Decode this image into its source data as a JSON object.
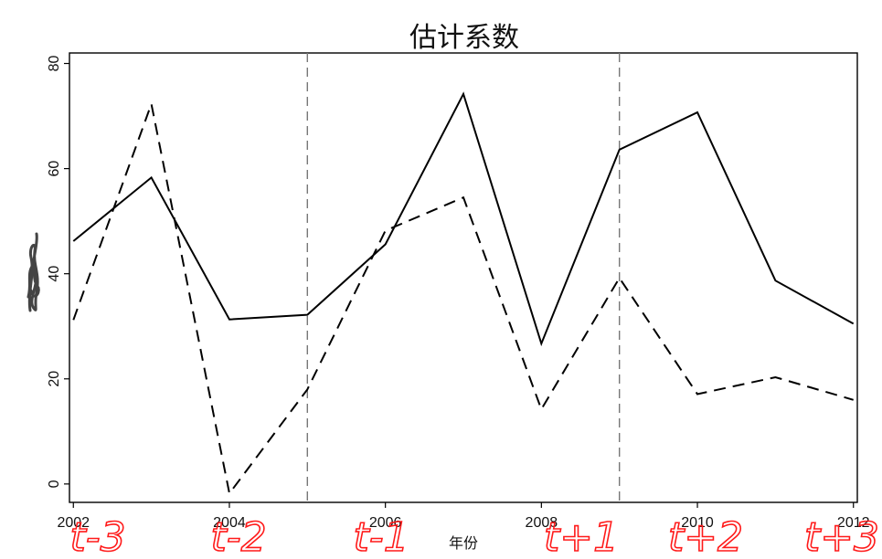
{
  "chart_data": {
    "type": "line",
    "title": "估计系数",
    "xlabel": "年份",
    "ylabel": "",
    "x": [
      2002,
      2003,
      2004,
      2005,
      2006,
      2007,
      2008,
      2009,
      2010,
      2011,
      2012
    ],
    "xlim": [
      2001.95,
      2012.05
    ],
    "ylim": [
      -3.5,
      82
    ],
    "xticks": [
      "2002",
      "2004",
      "2006",
      "2008",
      "2010",
      "2012"
    ],
    "yticks": [
      "0",
      "20",
      "40",
      "60",
      "80"
    ],
    "vlines": [
      2005,
      2009
    ],
    "grid": false,
    "series": [
      {
        "style": "solid",
        "color": "#000000",
        "values": [
          46.2,
          58.3,
          31.3,
          32.2,
          45.6,
          74.2,
          26.7,
          63.6,
          70.7,
          38.7,
          30.5
        ]
      },
      {
        "style": "dashed",
        "color": "#000000",
        "values": [
          31.2,
          72.3,
          -1.8,
          18.0,
          48.2,
          54.5,
          14.2,
          39.2,
          17.1,
          20.3,
          16.0
        ]
      }
    ],
    "annotations": [
      "t-3",
      "t-2",
      "t-1",
      "t+1",
      "t+2",
      "t+3"
    ],
    "annotation_color": "#ff1a1a"
  }
}
